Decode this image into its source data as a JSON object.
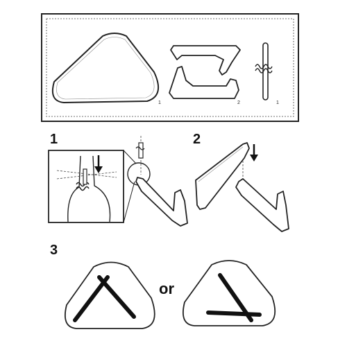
{
  "parts_box": {
    "tabletop_qty": "1",
    "bases_qty": "2",
    "connector_qty": "1"
  },
  "steps": [
    {
      "number": "1"
    },
    {
      "number": "2"
    },
    {
      "number": "3"
    }
  ],
  "step3": {
    "connector_word": "or"
  }
}
